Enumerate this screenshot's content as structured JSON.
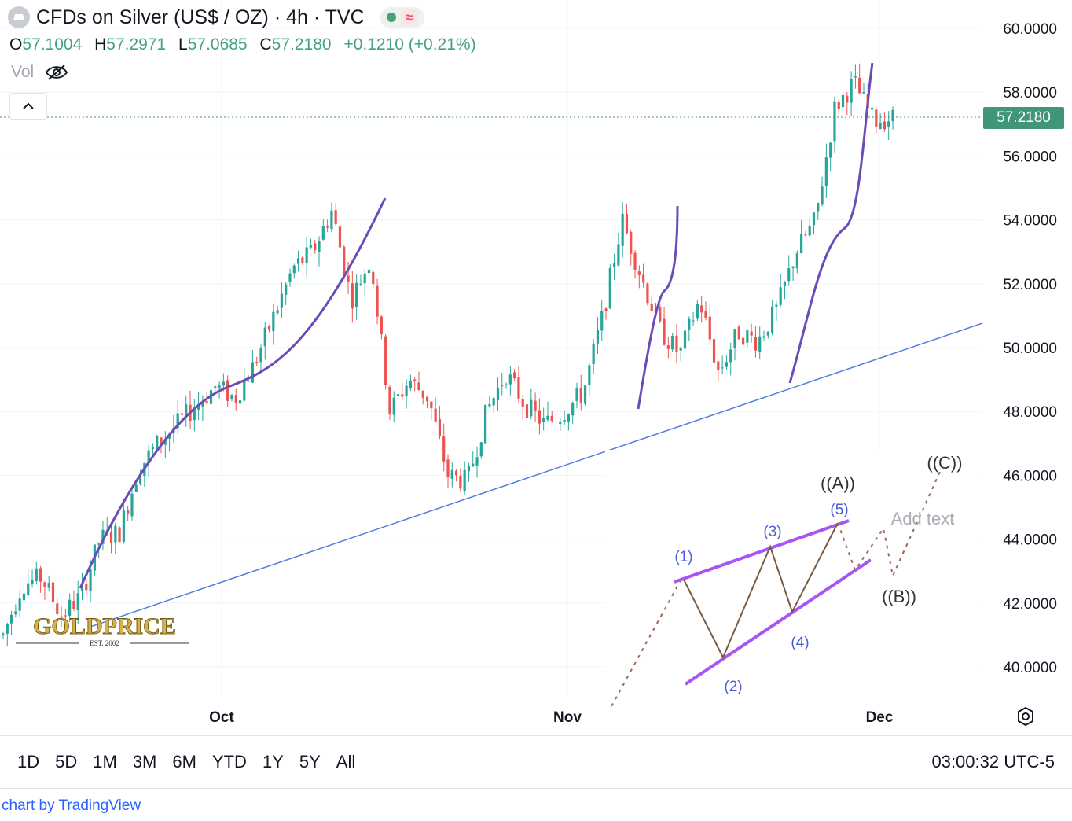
{
  "header": {
    "title": "CFDs on Silver (US$ / OZ) · 4h · TVC",
    "status_dot_color": "#44a37b",
    "wave_glyph": "≈"
  },
  "ohlc": {
    "o_label": "O",
    "o": "57.1004",
    "h_label": "H",
    "h": "57.2971",
    "l_label": "L",
    "l": "57.0685",
    "c_label": "C",
    "c": "57.2180",
    "change": "+0.1210 (+0.21%)"
  },
  "vol_label": "Vol",
  "last_price": "57.2180",
  "ranges": [
    "1D",
    "5D",
    "1M",
    "3M",
    "6M",
    "YTD",
    "1Y",
    "5Y",
    "All"
  ],
  "clock": "03:00:32 UTC-5",
  "footer": "chart by TradingView",
  "logo": {
    "text": "GOLDPRICE",
    "sub": "EST. 2002"
  },
  "colors": {
    "up": "#26a69a",
    "down": "#ef5350",
    "trend": "#4f7fe0",
    "curve": "#6a4bb8",
    "wave": "#a855f7",
    "wave_zig": "#7a5a40",
    "label": "#4a5bd8"
  },
  "chart_data": {
    "type": "candlestick",
    "symbol": "CFDs on Silver (US$ / OZ)",
    "interval": "4h",
    "ylim": [
      39,
      60.8
    ],
    "y_ticks": [
      "60.0000",
      "58.0000",
      "56.0000",
      "54.0000",
      "52.0000",
      "50.0000",
      "48.0000",
      "46.0000",
      "44.0000",
      "42.0000",
      "40.0000"
    ],
    "x_ticks": [
      "Oct",
      "Nov",
      "Dec"
    ],
    "price_path": [
      41.0,
      42.6,
      42.8,
      41.6,
      42.2,
      44.0,
      44.2,
      46.2,
      47.0,
      47.6,
      48.2,
      48.8,
      48.4,
      49.5,
      51.0,
      52.5,
      53.0,
      54.3,
      51.5,
      52.8,
      48.0,
      49.0,
      48.4,
      46.0,
      45.8,
      48.0,
      49.2,
      48.2,
      47.6,
      48.0,
      48.6,
      51.0,
      54.0,
      52.2,
      50.5,
      49.8,
      51.5,
      49.2,
      50.5,
      50.2,
      51.2,
      53.0,
      54.0,
      57.5,
      58.3,
      57.1,
      57.2
    ],
    "trendline": {
      "from": [
        "mid-Sep",
        41.8
      ],
      "to": [
        "early-Dec",
        50.8
      ]
    },
    "wave_labels": [
      "(1)",
      "(2)",
      "(3)",
      "(4)",
      "(5)",
      "((A))",
      "((B))",
      "((C))"
    ],
    "annotation_text": "Add text"
  }
}
